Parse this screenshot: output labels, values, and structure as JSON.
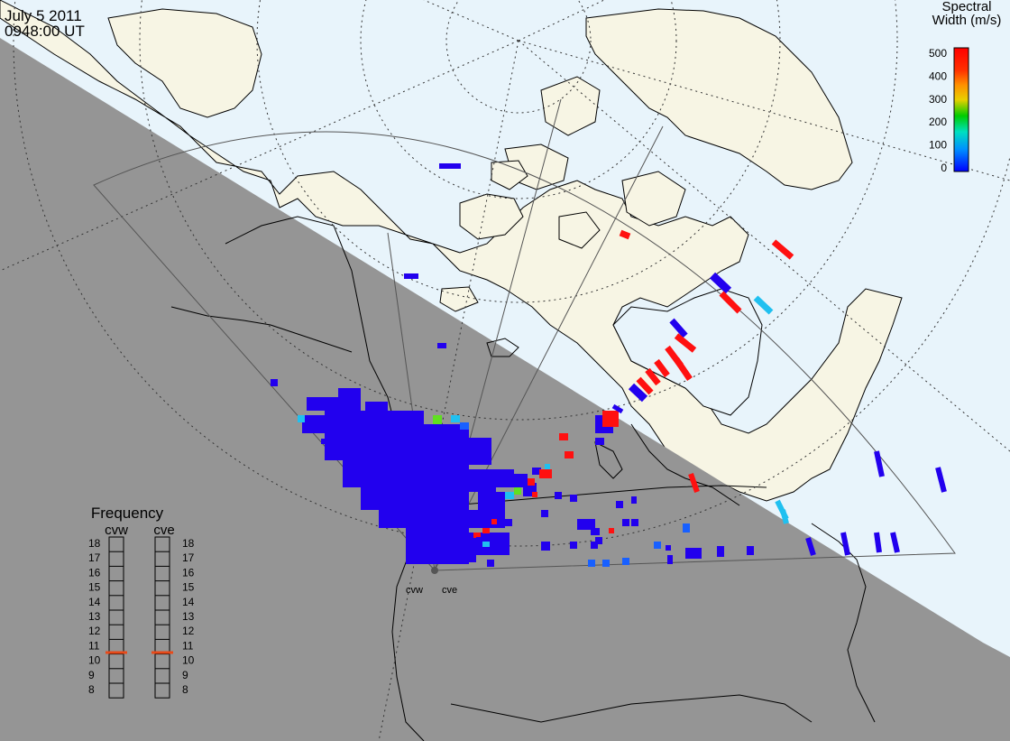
{
  "header": {
    "date": "July  5 2011",
    "time": "0948:00 UT"
  },
  "colorbar": {
    "title_line1": "Spectral",
    "title_line2": "Width (m/s)",
    "ticks": [
      "500",
      "400",
      "300",
      "200",
      "100",
      "0"
    ],
    "colors": [
      "#ff0000",
      "#ff8000",
      "#ffd000",
      "#00cc00",
      "#00e0e0",
      "#0060ff",
      "#0000ff"
    ]
  },
  "stations": {
    "west": "cvw",
    "east": "cve"
  },
  "frequency_panel": {
    "title": "Frequency",
    "col_left": "cvw",
    "col_right": "cve",
    "ticks": [
      "18",
      "17",
      "16",
      "15",
      "14",
      "13",
      "12",
      "11",
      "10",
      "9",
      "8"
    ],
    "cvw_value": 10.6,
    "cve_value": 10.6,
    "marker_color": "#e84a1a"
  },
  "map": {
    "night_color": "#959595",
    "ocean_color": "#e8f4fb",
    "land_color": "#f7f5e4"
  }
}
